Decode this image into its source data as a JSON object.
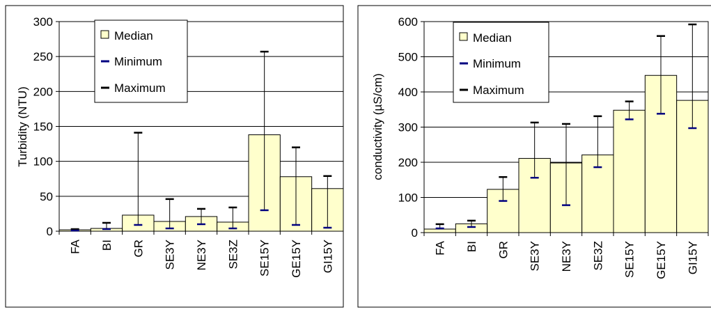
{
  "chart_data": [
    {
      "type": "bar",
      "title": "",
      "xlabel": "",
      "ylabel": "Turbidity (NTU)",
      "ylim": [
        0,
        300
      ],
      "yticks": [
        "0",
        "50",
        "100",
        "150",
        "200",
        "250",
        "300"
      ],
      "categories": [
        "FA",
        "BI",
        "GR",
        "SE3Y",
        "NE3Y",
        "SE3Z",
        "SE15Y",
        "GE15Y",
        "GI15Y"
      ],
      "series": [
        {
          "name": "Median",
          "values": [
            2,
            4,
            23,
            14,
            21,
            13,
            138,
            78,
            61
          ]
        },
        {
          "name": "Minimum",
          "values": [
            1,
            3,
            9,
            4,
            10,
            4,
            30,
            9,
            5
          ]
        },
        {
          "name": "Maximum",
          "values": [
            3,
            12,
            141,
            46,
            32,
            34,
            257,
            120,
            79
          ]
        }
      ],
      "legend": [
        "Median",
        "Minimum",
        "Maximum"
      ],
      "legend_position": "top-left",
      "grid": true,
      "colors": {
        "bar_fill": "#ffffcc",
        "minimum_marker": "#000080",
        "maximum_marker": "#000000"
      }
    },
    {
      "type": "bar",
      "title": "",
      "xlabel": "",
      "ylabel": "conductivity (µS/cm)",
      "ylim": [
        0,
        600
      ],
      "yticks": [
        "0",
        "100",
        "200",
        "300",
        "400",
        "500",
        "600"
      ],
      "categories": [
        "FA",
        "BI",
        "GR",
        "SE3Y",
        "NE3Y",
        "SE3Z",
        "SE15Y",
        "GE15Y",
        "GI15Y"
      ],
      "series": [
        {
          "name": "Median",
          "values": [
            10,
            25,
            123,
            211,
            198,
            221,
            348,
            447,
            376
          ]
        },
        {
          "name": "Minimum",
          "values": [
            12,
            16,
            90,
            156,
            78,
            186,
            322,
            338,
            297
          ]
        },
        {
          "name": "Maximum",
          "values": [
            24,
            34,
            158,
            313,
            309,
            331,
            373,
            559,
            592
          ]
        }
      ],
      "legend": [
        "Median",
        "Minimum",
        "Maximum"
      ],
      "legend_position": "top-left",
      "grid": true,
      "colors": {
        "bar_fill": "#ffffcc",
        "minimum_marker": "#000080",
        "maximum_marker": "#000000"
      }
    }
  ]
}
